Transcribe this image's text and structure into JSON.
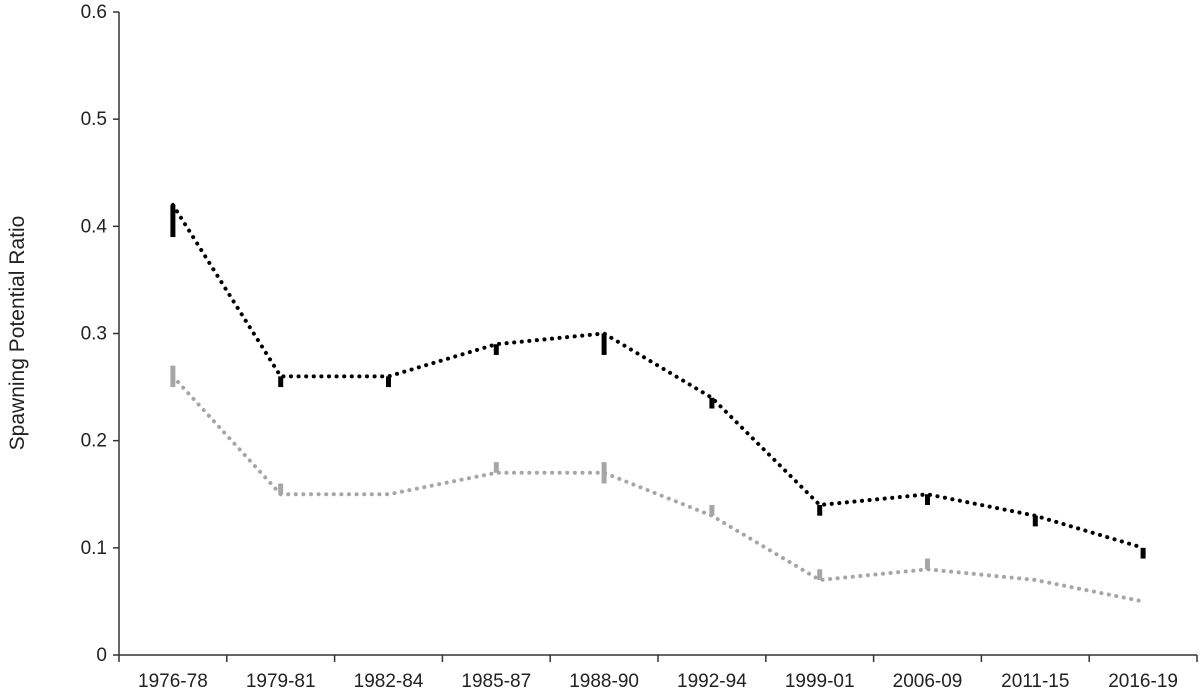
{
  "chart_data": {
    "type": "line",
    "title": "",
    "xlabel": "",
    "ylabel": "Spawning Potential Ratio",
    "categories": [
      "1976-78",
      "1979-81",
      "1982-84",
      "1985-87",
      "1988-90",
      "1992-94",
      "1999-01",
      "2006-09",
      "2011-15",
      "2016-19"
    ],
    "ylim": [
      0,
      0.6
    ],
    "yticks": [
      "0",
      "0.1",
      "0.2",
      "0.3",
      "0.4",
      "0.5",
      "0.6"
    ],
    "grid": false,
    "legend": "none",
    "series": [
      {
        "color": "#000000",
        "line_style": "dotted",
        "values": [
          0.42,
          0.26,
          0.26,
          0.29,
          0.3,
          0.24,
          0.14,
          0.15,
          0.13,
          0.1
        ],
        "error_bars": [
          [
            0.39,
            0.42
          ],
          [
            0.25,
            0.26
          ],
          [
            0.25,
            0.26
          ],
          [
            0.28,
            0.29
          ],
          [
            0.28,
            0.3
          ],
          [
            0.23,
            0.24
          ],
          [
            0.13,
            0.14
          ],
          [
            0.14,
            0.15
          ],
          [
            0.12,
            0.13
          ],
          [
            0.09,
            0.1
          ]
        ]
      },
      {
        "color": "#a6a6a6",
        "line_style": "dotted",
        "values": [
          0.26,
          0.15,
          0.15,
          0.17,
          0.17,
          0.13,
          0.07,
          0.08,
          0.07,
          0.05
        ],
        "error_bars": [
          [
            0.25,
            0.27
          ],
          [
            0.15,
            0.16
          ],
          null,
          [
            0.17,
            0.18
          ],
          [
            0.16,
            0.18
          ],
          [
            0.13,
            0.14
          ],
          [
            0.07,
            0.08
          ],
          [
            0.08,
            0.09
          ],
          null,
          null
        ]
      }
    ]
  }
}
